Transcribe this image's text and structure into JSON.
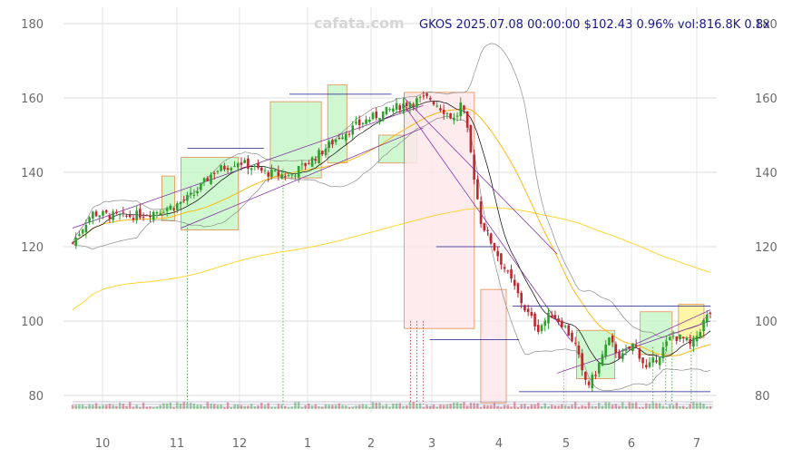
{
  "watermark": "cafata.com",
  "info_line": "GKOS 2025.07.08 00:00:00 $102.43 0.96% vol:816.8K 0.8x",
  "chart_data": {
    "type": "candlestick",
    "ticker": "GKOS",
    "last_date": "2025.07.08",
    "last_close": 102.43,
    "change_pct": 0.96,
    "volume": "816.8K",
    "volume_ratio": "0.8x",
    "x_ticks": [
      "10",
      "11",
      "12",
      "1",
      "2",
      "3",
      "4",
      "5",
      "6",
      "7"
    ],
    "y_ticks": [
      80,
      100,
      120,
      140,
      160,
      180
    ],
    "ylim": [
      76,
      184
    ],
    "grid": true,
    "colors": {
      "up": "#2ca02c",
      "down": "#c0282d",
      "ma_short": "#000000",
      "ma_mid": "#ffb300",
      "ma_long": "#ffd21f",
      "bollinger": "#8c8c8c",
      "trend": "#7b1fa2",
      "level": "#1a1a8c",
      "box_up": "#c8f7c8",
      "box_down": "#fde8ea",
      "box_current": "#fff59a"
    },
    "price_path": [
      [
        0,
        121
      ],
      [
        0.03,
        129
      ],
      [
        0.08,
        128
      ],
      [
        0.12,
        129
      ],
      [
        0.16,
        131
      ],
      [
        0.19,
        134
      ],
      [
        0.22,
        140
      ],
      [
        0.26,
        143
      ],
      [
        0.3,
        140
      ],
      [
        0.34,
        139
      ],
      [
        0.38,
        144
      ],
      [
        0.42,
        150
      ],
      [
        0.46,
        154
      ],
      [
        0.5,
        157
      ],
      [
        0.53,
        159
      ],
      [
        0.56,
        160
      ],
      [
        0.58,
        157
      ],
      [
        0.6,
        154
      ],
      [
        0.61,
        159
      ],
      [
        0.62,
        150
      ],
      [
        0.64,
        127
      ],
      [
        0.66,
        120
      ],
      [
        0.69,
        110
      ],
      [
        0.71,
        103
      ],
      [
        0.73,
        98
      ],
      [
        0.75,
        102
      ],
      [
        0.77,
        99
      ],
      [
        0.79,
        93
      ],
      [
        0.8,
        85
      ],
      [
        0.81,
        83
      ],
      [
        0.82,
        86
      ],
      [
        0.84,
        95
      ],
      [
        0.86,
        90
      ],
      [
        0.88,
        94
      ],
      [
        0.9,
        87
      ],
      [
        0.92,
        91
      ],
      [
        0.94,
        96
      ],
      [
        0.96,
        95
      ],
      [
        0.97,
        93
      ],
      [
        0.99,
        100
      ],
      [
        1.0,
        102.43
      ]
    ]
  }
}
